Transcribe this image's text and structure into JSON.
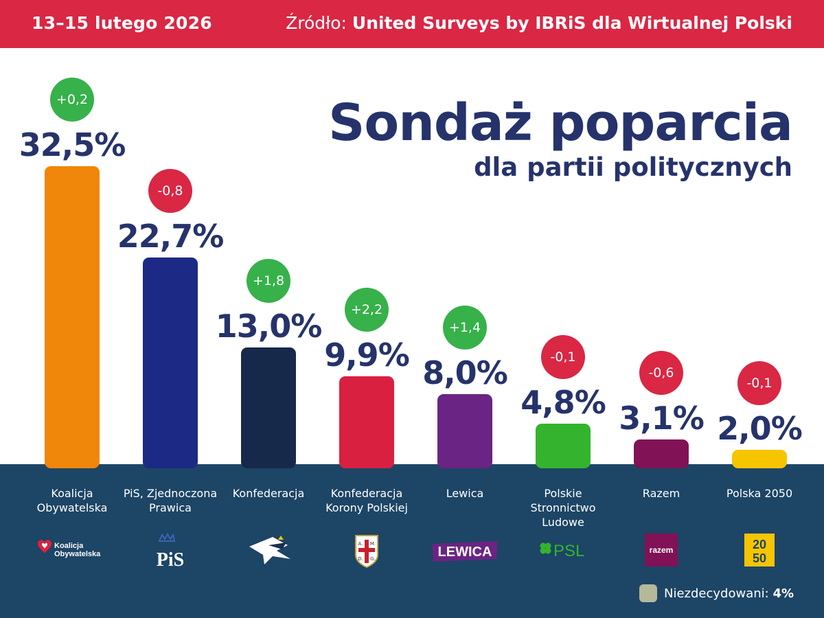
{
  "header": {
    "date": "13–15 lutego 2026",
    "source_prefix": "Źródło:",
    "source_name": "United Surveys by IBRiS dla Wirtualnej Polski"
  },
  "title": "Sondaż poparcia",
  "subtitle": "dla partii politycznych",
  "chart_data": {
    "type": "bar",
    "title": "Sondaż poparcia",
    "subtitle": "dla partii politycznych",
    "unit": "%",
    "categories": [
      "Koalicja Obywatelska",
      "PiS, Zjednoczona Prawica",
      "Konfederacja",
      "Konfederacja Korony Polskiej",
      "Lewica",
      "Polskie Stronnictwo Ludowe",
      "Razem",
      "Polska 2050"
    ],
    "values": [
      32.5,
      22.7,
      13.0,
      9.9,
      8.0,
      4.8,
      3.1,
      2.0
    ],
    "value_labels": [
      "32,5%",
      "22,7%",
      "13,0%",
      "9,9%",
      "8,0%",
      "4,8%",
      "3,1%",
      "2,0%"
    ],
    "changes": [
      0.2,
      -0.8,
      1.8,
      2.2,
      1.4,
      -0.1,
      -0.6,
      -0.1
    ],
    "change_labels": [
      "+0,2",
      "-0,8",
      "+1,8",
      "+2,2",
      "+1,4",
      "-0,1",
      "-0,6",
      "-0,1"
    ],
    "bar_colors": [
      "#f0860a",
      "#1d2a85",
      "#17294a",
      "#d92040",
      "#6a2484",
      "#34b32f",
      "#801255",
      "#f6c500"
    ],
    "logos": [
      "koalicja-obywatelska-logo",
      "pis-logo",
      "konfederacja-logo",
      "konfederacja-korony-polskiej-logo",
      "lewica-logo",
      "psl-logo",
      "razem-logo",
      "polska-2050-logo"
    ],
    "ylim": [
      0,
      32.5
    ]
  },
  "logo_text": {
    "ko": [
      "Koalicja",
      "Obywatelska"
    ],
    "pis": "PiS",
    "kkp": [
      "A.",
      "M.",
      "D.",
      "G."
    ],
    "lewica": "LEWICA",
    "psl": "PSL",
    "razem": "razem",
    "p2050": [
      "20",
      "50"
    ]
  },
  "legend": {
    "label": "Niezdecydowani:",
    "value": "4%",
    "color": "#b5b99a"
  },
  "colors": {
    "header_bg": "#d92744",
    "footer_bg": "#1d4565",
    "positive": "#37b14a",
    "negative": "#d92744",
    "text_dark": "#26336b"
  }
}
